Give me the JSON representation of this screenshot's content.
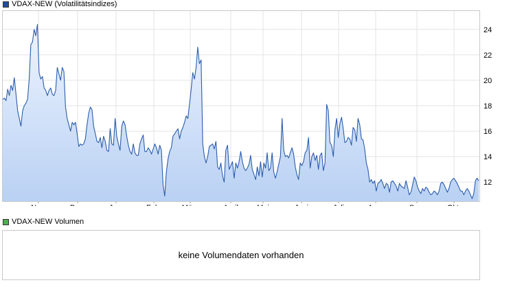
{
  "legend": {
    "price_label": "VDAX-NEW (Volatilitätsindizes)",
    "price_color": "#1f4ea0",
    "volume_label": "VDAX-NEW Volumen",
    "volume_color": "#4caf50"
  },
  "volume_panel": {
    "message": "keine Volumendaten vorhanden"
  },
  "chart_data": {
    "type": "area",
    "title": "VDAX-NEW (Volatilitätsindizes)",
    "y_axis_position": "right",
    "ylim": [
      10.5,
      25.5
    ],
    "y_ticks": [
      12,
      14,
      16,
      18,
      20,
      22,
      24
    ],
    "x_ticks": [
      "Nov.",
      "Dez.",
      "Jan.",
      "Feb.",
      "März",
      "April",
      "Mai",
      "Juni",
      "Juli",
      "Aug.",
      "Sep.",
      "Okt."
    ],
    "line_color": "#2a5caa",
    "fill_top_color": "#eef4ff",
    "fill_bottom_color": "#b9d1f3",
    "grid": true,
    "series": [
      {
        "values": [
          18.5,
          18.6,
          18.4,
          19.3,
          18.8,
          19.6,
          19.2,
          20.2,
          18.9,
          17.6,
          17.0,
          16.4,
          17.6,
          18.0,
          18.2,
          18.5,
          20.1,
          22.8,
          23.0,
          24.0,
          23.5,
          24.4,
          20.6,
          20.1,
          20.3,
          19.4,
          19.2,
          18.8,
          19.2,
          19.4,
          18.9,
          18.8,
          19.2,
          21.0,
          20.5,
          20.0,
          21.0,
          20.7,
          17.9,
          17.0,
          16.5,
          16.0,
          16.7,
          16.5,
          16.7,
          15.8,
          14.8,
          15.0,
          14.9,
          15.0,
          15.4,
          16.5,
          17.4,
          17.9,
          17.7,
          16.4,
          15.8,
          15.2,
          15.1,
          15.5,
          14.7,
          15.6,
          15.2,
          14.5,
          14.4,
          16.2,
          15.0,
          14.9,
          17.0,
          15.6,
          15.0,
          14.5,
          16.4,
          16.8,
          16.5,
          15.6,
          14.9,
          14.4,
          14.2,
          15.0,
          14.3,
          14.1,
          14.1,
          15.0,
          15.4,
          15.7,
          14.4,
          14.4,
          14.7,
          14.5,
          14.2,
          14.6,
          15.0,
          14.7,
          14.2,
          14.9,
          14.5,
          11.8,
          10.9,
          12.8,
          13.8,
          14.4,
          14.7,
          15.6,
          15.8,
          16.0,
          16.2,
          15.4,
          16.0,
          16.3,
          16.7,
          17.2,
          17.0,
          18.1,
          19.3,
          20.6,
          20.1,
          21.0,
          22.6,
          21.3,
          21.6,
          15.0,
          14.0,
          13.5,
          14.0,
          14.8,
          14.9,
          15.0,
          14.6,
          15.2,
          13.2,
          13.0,
          13.5,
          12.5,
          12.0,
          14.5,
          14.9,
          13.0,
          13.3,
          13.6,
          12.3,
          13.5,
          13.1,
          13.6,
          14.4,
          13.6,
          13.1,
          12.9,
          13.1,
          13.4,
          14.1,
          13.0,
          12.6,
          12.2,
          13.2,
          12.5,
          13.6,
          12.4,
          13.5,
          13.1,
          14.3,
          12.9,
          13.1,
          14.3,
          12.8,
          12.3,
          12.8,
          13.4,
          14.0,
          17.0,
          14.5,
          14.0,
          14.1,
          13.9,
          14.3,
          14.7,
          14.2,
          13.2,
          12.6,
          12.2,
          13.5,
          13.3,
          13.6,
          14.3,
          14.5,
          15.5,
          13.1,
          14.0,
          14.3,
          13.7,
          14.1,
          13.0,
          14.1,
          14.3,
          12.9,
          13.5,
          18.1,
          17.6,
          15.1,
          14.9,
          14.0,
          16.1,
          17.0,
          15.5,
          16.6,
          17.1,
          16.2,
          15.1,
          15.2,
          15.5,
          15.4,
          14.9,
          16.3,
          16.1,
          15.2,
          17.0,
          16.5,
          15.4,
          15.3,
          14.6,
          13.5,
          13.0,
          12.0,
          12.2,
          11.9,
          12.1,
          11.3,
          11.9,
          12.0,
          12.2,
          11.9,
          11.5,
          11.9,
          11.8,
          11.2,
          12.0,
          12.1,
          11.9,
          11.7,
          11.3,
          11.9,
          11.7,
          11.6,
          11.5,
          12.1,
          11.6,
          11.0,
          11.2,
          11.8,
          12.4,
          12.1,
          11.6,
          11.3,
          11.1,
          11.5,
          11.3,
          11.6,
          11.5,
          11.2,
          11.0,
          11.1,
          11.3,
          11.2,
          11.0,
          11.3,
          11.9,
          12.0,
          11.8,
          11.5,
          11.2,
          11.5,
          12.0,
          12.2,
          12.3,
          12.1,
          11.9,
          11.6,
          11.3,
          11.3,
          11.0,
          11.3,
          11.5,
          11.3,
          11.0,
          10.7,
          11.1,
          12.1,
          12.3,
          12.1
        ]
      }
    ]
  }
}
